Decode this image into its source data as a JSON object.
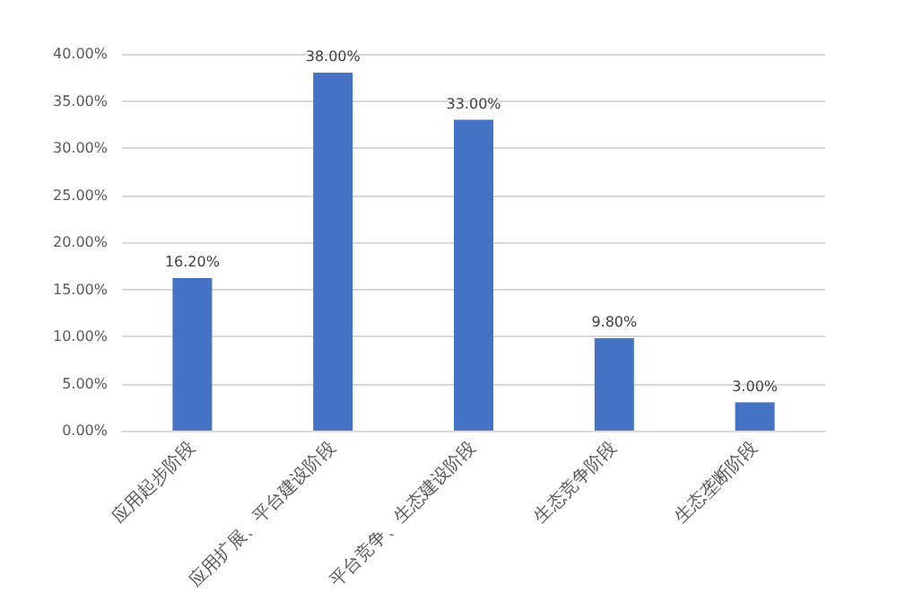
{
  "chart_data": {
    "type": "bar",
    "categories": [
      "应用起步阶段",
      "应用扩展、平台建设阶段",
      "平台竞争、生态建设阶段",
      "生态竞争阶段",
      "生态垄断阶段"
    ],
    "values": [
      16.2,
      38,
      33,
      9.8,
      3
    ],
    "value_labels": [
      "16.20%",
      "38.00%",
      "33.00%",
      "9.80%",
      "3.00%"
    ],
    "color": "#4472c4",
    "ylim": [
      0,
      40
    ],
    "yticks": [
      {
        "value": 0,
        "label": "0.00%"
      },
      {
        "value": 5,
        "label": "5.00%"
      },
      {
        "value": 10,
        "label": "10.00%"
      },
      {
        "value": 15,
        "label": "15.00%"
      },
      {
        "value": 20,
        "label": "20.00%"
      },
      {
        "value": 25,
        "label": "25.00%"
      },
      {
        "value": 30,
        "label": "30.00%"
      },
      {
        "value": 35,
        "label": "35.00%"
      },
      {
        "value": 40,
        "label": "40.00%"
      }
    ],
    "grid": "y"
  }
}
